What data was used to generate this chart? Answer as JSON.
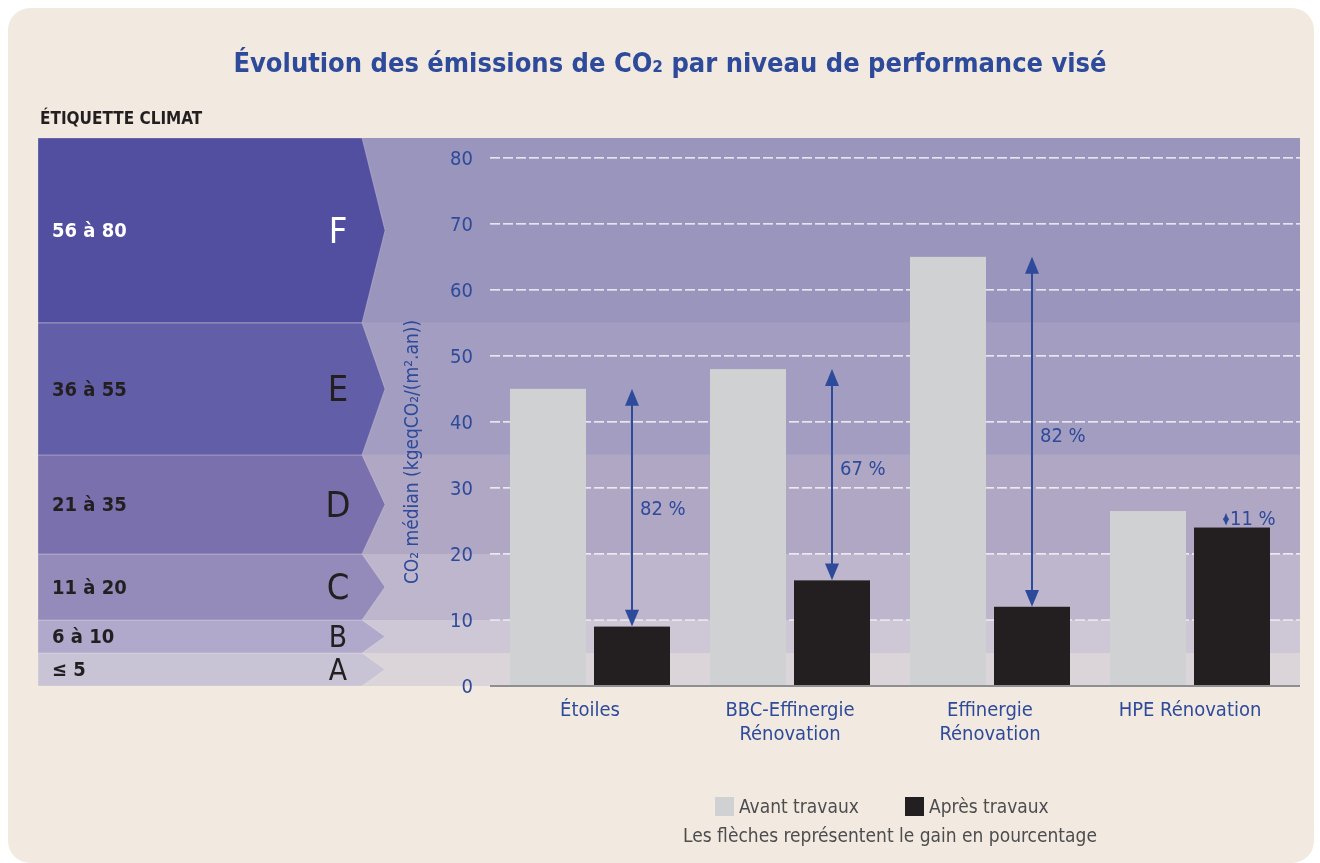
{
  "chart_data": {
    "type": "bar",
    "title": "Évolution des émissions de CO₂ par niveau de performance visé",
    "ylabel": "CO₂ médian (kgeqCO₂/(m².an))",
    "categories": [
      "Étoiles",
      "BBC-Effinergie Rénovation",
      "Effinergie Rénovation",
      "HPE Rénovation"
    ],
    "series": [
      {
        "name": "Avant travaux",
        "color": "#d0d1d3",
        "values": [
          45,
          48,
          65,
          26.5
        ]
      },
      {
        "name": "Après travaux",
        "color": "#231f20",
        "values": [
          9,
          16,
          12,
          24
        ]
      }
    ],
    "ylim": [
      0,
      83
    ],
    "yticks": [
      0,
      10,
      20,
      30,
      40,
      50,
      60,
      70,
      80
    ],
    "grid": "y",
    "legend": "bottom",
    "bands": [
      {
        "axis": "y",
        "from": 0,
        "to": 5,
        "label": "A",
        "color": "#c9c3d6"
      },
      {
        "axis": "y",
        "from": 5,
        "to": 10,
        "label": "B",
        "color": "#b1a9cc"
      },
      {
        "axis": "y",
        "from": 10,
        "to": 20,
        "label": "C",
        "color": "#948bbb"
      },
      {
        "axis": "y",
        "from": 20,
        "to": 35,
        "label": "D",
        "color": "#7a70ad"
      },
      {
        "axis": "y",
        "from": 35,
        "to": 55,
        "label": "E",
        "color": "#635ea8"
      },
      {
        "axis": "y",
        "from": 55,
        "to": 83,
        "label": "F",
        "color": "#524ea0"
      }
    ],
    "annotations": [
      "ÉTIQUETTE CLIMAT",
      "≤ 5",
      "6 à 10",
      "11 à 20",
      "21 à 35",
      "36 à 55",
      "56 à 80",
      {
        "text": "82 %",
        "x": "Étoiles",
        "y": 27
      },
      {
        "text": "67 %",
        "x": "BBC-Effinergie Rénovation",
        "y": 33
      },
      {
        "text": "82 %",
        "x": "Effinergie Rénovation",
        "y": 38
      },
      {
        "text": "11 %",
        "x": "HPE Rénovation",
        "y": 25.5
      },
      "Les flèches représentent le gain en pourcentage"
    ]
  }
}
